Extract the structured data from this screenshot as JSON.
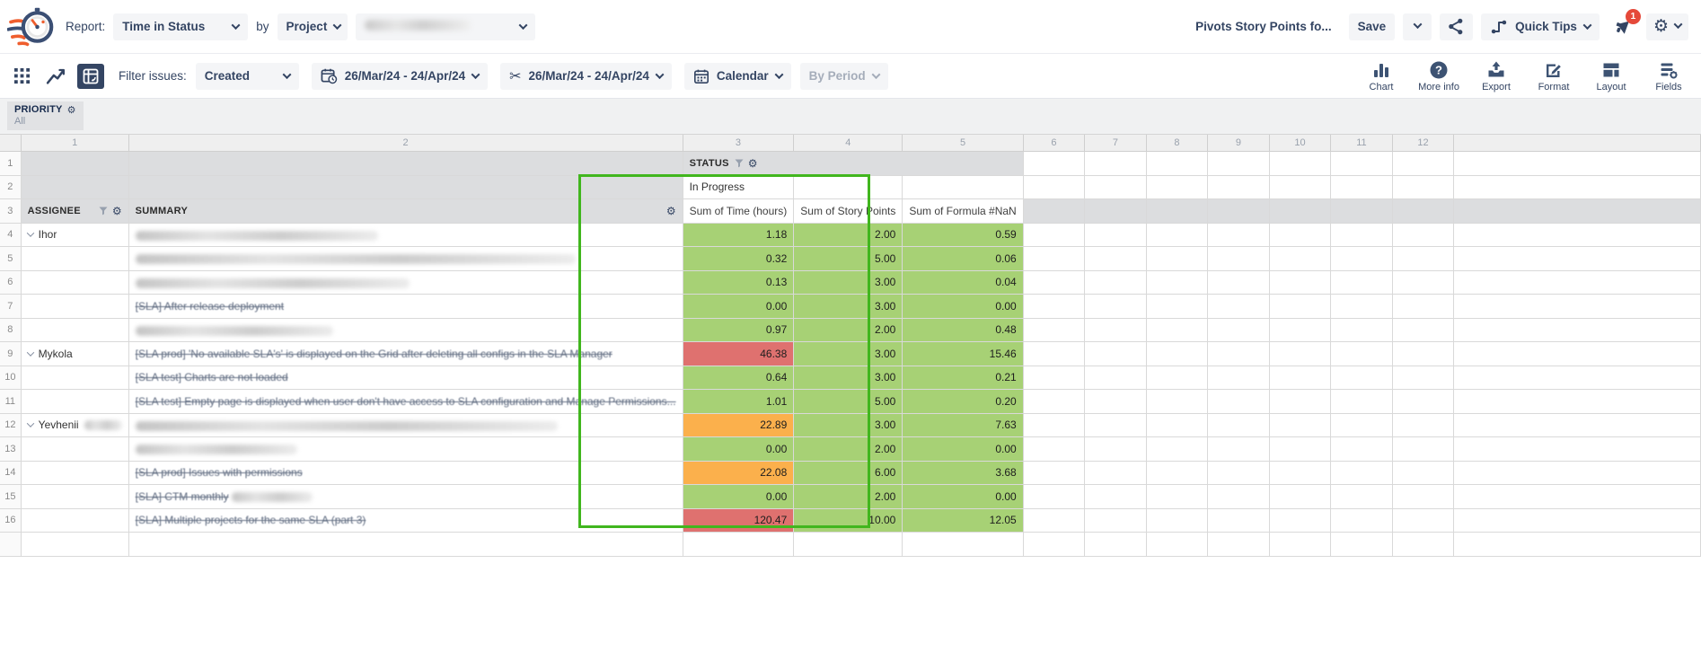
{
  "header": {
    "report_label": "Report:",
    "report_type": "Time in Status",
    "by_label": "by",
    "group_by": "Project",
    "title": "Pivots Story Points fo...",
    "save_label": "Save",
    "quick_tips_label": "Quick Tips",
    "notification_badge": "1"
  },
  "toolbar": {
    "filter_label": "Filter issues:",
    "filter_value": "Created",
    "created_range": "26/Mar/24 - 24/Apr/24",
    "trim_range": "26/Mar/24 - 24/Apr/24",
    "calendar_label": "Calendar",
    "by_period_label": "By Period",
    "actions": [
      {
        "label": "Chart",
        "icon": "bar-chart-icon"
      },
      {
        "label": "More info",
        "icon": "help-icon"
      },
      {
        "label": "Export",
        "icon": "export-icon"
      },
      {
        "label": "Format",
        "icon": "format-icon"
      },
      {
        "label": "Layout",
        "icon": "layout-icon"
      },
      {
        "label": "Fields",
        "icon": "fields-icon"
      }
    ]
  },
  "pivot_config": {
    "field_label": "PRIORITY",
    "field_value": "All"
  },
  "table": {
    "column_numbers": [
      "1",
      "2",
      "3",
      "4",
      "5",
      "6",
      "7",
      "8",
      "9",
      "10",
      "11",
      "12"
    ],
    "row_group_header": "STATUS",
    "status_column_value": "In Progress",
    "assignee_header": "ASSIGNEE",
    "summary_header": "SUMMARY",
    "measure_headers": [
      "Sum of Time (hours)",
      "Sum of Story Points",
      "Sum of Formula #NaN"
    ],
    "rows": [
      {
        "num": "4",
        "assignee": "Ihor",
        "has_chevron": true,
        "assignee_blur_width": 0,
        "summary_text": "",
        "summary_redacted": true,
        "summary_blur_width": 270,
        "time_hours": "1.18",
        "story_points": "2.00",
        "formula": "0.59",
        "time_color": "green"
      },
      {
        "num": "5",
        "assignee": "",
        "has_chevron": false,
        "assignee_blur_width": 0,
        "summary_text": "",
        "summary_redacted": true,
        "summary_blur_width": 490,
        "time_hours": "0.32",
        "story_points": "5.00",
        "formula": "0.06",
        "time_color": "green"
      },
      {
        "num": "6",
        "assignee": "",
        "has_chevron": false,
        "assignee_blur_width": 0,
        "summary_text": "",
        "summary_redacted": true,
        "summary_blur_width": 305,
        "time_hours": "0.13",
        "story_points": "3.00",
        "formula": "0.04",
        "time_color": "green"
      },
      {
        "num": "7",
        "assignee": "",
        "has_chevron": false,
        "assignee_blur_width": 0,
        "summary_text": "[SLA] After release deployment",
        "summary_redacted": false,
        "summary_blur_width": 0,
        "time_hours": "0.00",
        "story_points": "3.00",
        "formula": "0.00",
        "time_color": "green"
      },
      {
        "num": "8",
        "assignee": "",
        "has_chevron": false,
        "assignee_blur_width": 0,
        "summary_text": "",
        "summary_redacted": true,
        "summary_blur_width": 220,
        "time_hours": "0.97",
        "story_points": "2.00",
        "formula": "0.48",
        "time_color": "green"
      },
      {
        "num": "9",
        "assignee": "Mykola",
        "has_chevron": true,
        "assignee_blur_width": 0,
        "summary_text": "[SLA prod] 'No available SLA's' is displayed on the Grid after deleting all configs in the SLA Manager",
        "summary_redacted": false,
        "summary_blur_width": 0,
        "time_hours": "46.38",
        "story_points": "3.00",
        "formula": "15.46",
        "time_color": "red"
      },
      {
        "num": "10",
        "assignee": "",
        "has_chevron": false,
        "assignee_blur_width": 0,
        "summary_text": "[SLA test] Charts are not loaded",
        "summary_redacted": false,
        "summary_blur_width": 0,
        "time_hours": "0.64",
        "story_points": "3.00",
        "formula": "0.21",
        "time_color": "green"
      },
      {
        "num": "11",
        "assignee": "",
        "has_chevron": false,
        "assignee_blur_width": 0,
        "summary_text": "[SLA test] Empty page is displayed when user don't have access to SLA configuration and Manage Permissions...",
        "summary_redacted": false,
        "summary_blur_width": 0,
        "time_hours": "1.01",
        "story_points": "5.00",
        "formula": "0.20",
        "time_color": "green"
      },
      {
        "num": "12",
        "assignee": "Yevhenii",
        "has_chevron": true,
        "assignee_blur_width": 42,
        "summary_text": "",
        "summary_redacted": true,
        "summary_blur_width": 470,
        "time_hours": "22.89",
        "story_points": "3.00",
        "formula": "7.63",
        "time_color": "orange"
      },
      {
        "num": "13",
        "assignee": "",
        "has_chevron": false,
        "assignee_blur_width": 0,
        "summary_text": "",
        "summary_redacted": true,
        "summary_blur_width": 180,
        "time_hours": "0.00",
        "story_points": "2.00",
        "formula": "0.00",
        "time_color": "green"
      },
      {
        "num": "14",
        "assignee": "",
        "has_chevron": false,
        "assignee_blur_width": 0,
        "summary_text": "[SLA prod] Issues with permissions",
        "summary_redacted": false,
        "summary_blur_width": 0,
        "time_hours": "22.08",
        "story_points": "6.00",
        "formula": "3.68",
        "time_color": "orange"
      },
      {
        "num": "15",
        "assignee": "",
        "has_chevron": false,
        "assignee_blur_width": 0,
        "summary_text": "[SLA] CTM monthly",
        "summary_redacted": false,
        "summary_blur_width": 90,
        "time_hours": "0.00",
        "story_points": "2.00",
        "formula": "0.00",
        "time_color": "green"
      },
      {
        "num": "16",
        "assignee": "",
        "has_chevron": false,
        "assignee_blur_width": 0,
        "summary_text": "[SLA] Multiple projects for the same SLA (part 3)",
        "summary_redacted": false,
        "summary_blur_width": 0,
        "time_hours": "120.47",
        "story_points": "10.00",
        "formula": "12.05",
        "time_color": "red"
      }
    ]
  },
  "colors": {
    "green_cell": "#a7d175",
    "red_cell": "#df716f",
    "orange_cell": "#fbb04c",
    "selection_border": "#41b61e",
    "navy": "#344563",
    "badge_red": "#e5493a"
  }
}
